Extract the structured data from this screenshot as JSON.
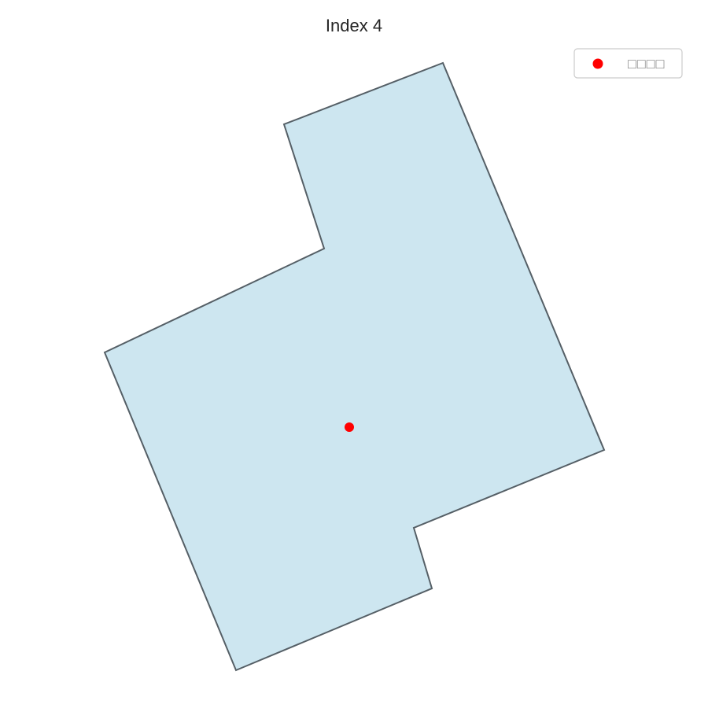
{
  "title": "Index 4",
  "legend": {
    "label": "□□□□",
    "placement": "top-right"
  },
  "shape": {
    "fill_color": "#cde6f0",
    "edge_color": "#555f66"
  },
  "point": {
    "color": "#ff0000"
  }
}
